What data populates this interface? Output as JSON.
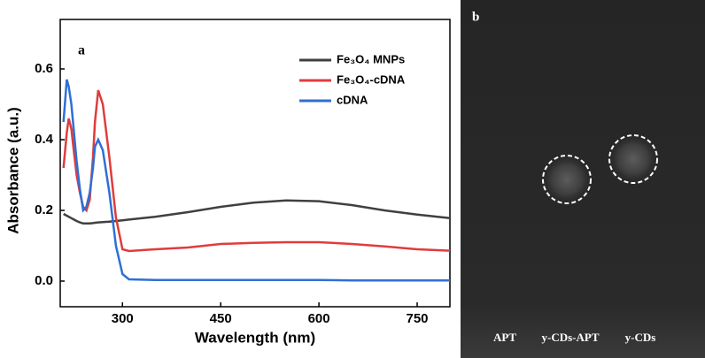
{
  "chart_data": {
    "type": "line",
    "panel_label": "a",
    "xlabel": "Wavelength (nm)",
    "ylabel": "Absorbance (a.u.)",
    "x": [
      210,
      215,
      218,
      222,
      225,
      230,
      235,
      240,
      245,
      250,
      255,
      258,
      263,
      270,
      280,
      290,
      300,
      310,
      350,
      400,
      450,
      500,
      550,
      600,
      650,
      700,
      750,
      800
    ],
    "series": [
      {
        "name": "Fe₃O₄ MNPs",
        "color": "#404040",
        "values": [
          0.19,
          0.185,
          0.182,
          0.178,
          0.175,
          0.17,
          0.166,
          0.163,
          0.163,
          0.163,
          0.164,
          0.165,
          0.166,
          0.167,
          0.168,
          0.17,
          0.172,
          0.174,
          0.182,
          0.195,
          0.21,
          0.222,
          0.228,
          0.226,
          0.215,
          0.2,
          0.188,
          0.178
        ]
      },
      {
        "name": "Fe₃O₄-cDNA",
        "color": "#e03c3c",
        "values": [
          0.32,
          0.42,
          0.46,
          0.43,
          0.38,
          0.3,
          0.25,
          0.21,
          0.2,
          0.23,
          0.35,
          0.45,
          0.54,
          0.5,
          0.35,
          0.18,
          0.09,
          0.085,
          0.09,
          0.095,
          0.105,
          0.108,
          0.11,
          0.11,
          0.105,
          0.098,
          0.09,
          0.086
        ]
      },
      {
        "name": "cDNA",
        "color": "#2f6fd6",
        "values": [
          0.45,
          0.57,
          0.55,
          0.5,
          0.44,
          0.34,
          0.26,
          0.2,
          0.21,
          0.25,
          0.32,
          0.38,
          0.4,
          0.37,
          0.25,
          0.1,
          0.02,
          0.005,
          0.003,
          0.003,
          0.003,
          0.003,
          0.003,
          0.003,
          0.002,
          0.002,
          0.002,
          0.002
        ]
      }
    ],
    "xlim": [
      205,
      800
    ],
    "ylim": [
      -0.0725,
      0.74
    ],
    "xticks": [
      300,
      450,
      600,
      750
    ],
    "yticks": [
      {
        "value": 0,
        "label": "0.0"
      },
      0.2,
      0.4,
      0.6
    ],
    "legend": "upper right"
  },
  "image_panel": {
    "panel_label": "b",
    "lane_labels": [
      "APT",
      "y-CDs-APT",
      "y-CDs"
    ]
  }
}
